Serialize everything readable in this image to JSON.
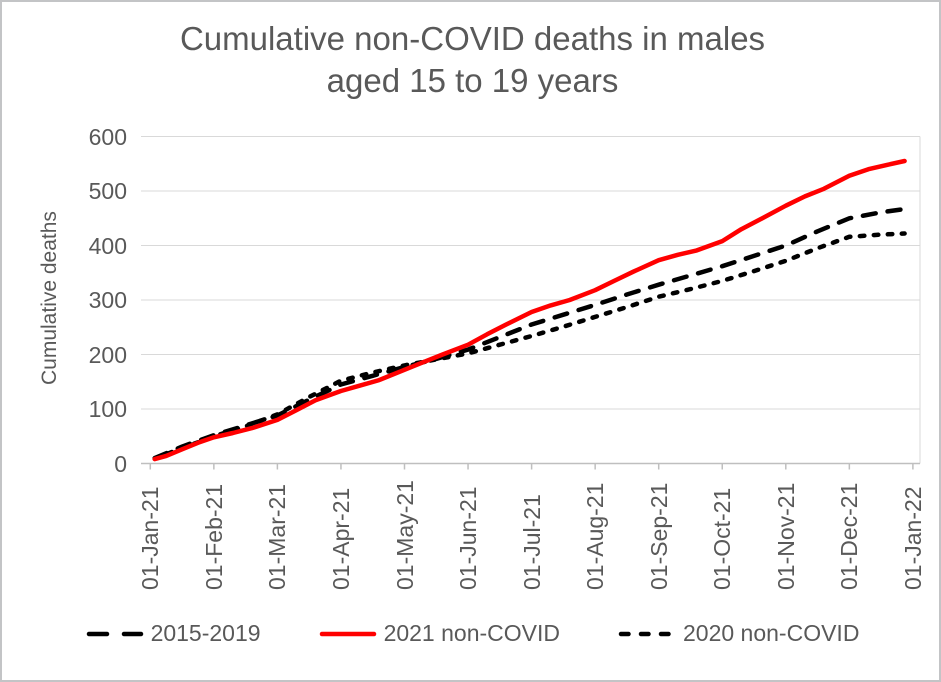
{
  "colors": {
    "text": "#595959",
    "gridline": "#d9d9d9",
    "axis": "#bfbfbf",
    "border": "#c3c4c6",
    "background": "#ffffff",
    "red": "#ff0000",
    "black": "#000000"
  },
  "title": {
    "lines": [
      "Cumulative non-COVID deaths in males",
      "aged 15 to 19 years"
    ]
  },
  "y_axis": {
    "title": "Cumulative deaths",
    "ticks": [
      0,
      100,
      200,
      300,
      400,
      500,
      600
    ],
    "max": 600
  },
  "x_axis": {
    "ticks": [
      "01-Jan-21",
      "01-Feb-21",
      "01-Mar-21",
      "01-Apr-21",
      "01-May-21",
      "01-Jun-21",
      "01-Jul-21",
      "01-Aug-21",
      "01-Sep-21",
      "01-Oct-21",
      "01-Nov-21",
      "01-Dec-21",
      "01-Jan-22"
    ]
  },
  "legend": {
    "items": [
      {
        "label": "2015-2019",
        "color": "#000000",
        "dash": "long"
      },
      {
        "label": "2021 non-COVID",
        "color": "#ff0000",
        "dash": "solid"
      },
      {
        "label": "2020 non-COVID",
        "color": "#000000",
        "dash": "short"
      }
    ]
  },
  "chart_data": {
    "type": "line",
    "title": "Cumulative non-COVID deaths in males aged 15 to 19 years",
    "xlabel": "",
    "ylabel": "Cumulative deaths",
    "ylim": [
      0,
      600
    ],
    "x_unit": "months since 01-Jan-21 (0 = 01-Jan-21, 12 = 01-Jan-22)",
    "grid": "horizontal-major",
    "legend_position": "bottom",
    "series": [
      {
        "name": "2015-2019",
        "color": "#000000",
        "dash": "long",
        "points": [
          [
            0.07,
            10
          ],
          [
            0.5,
            31
          ],
          [
            1.0,
            52
          ],
          [
            1.5,
            70
          ],
          [
            2.0,
            88
          ],
          [
            2.5,
            117
          ],
          [
            3.0,
            145
          ],
          [
            3.5,
            161
          ],
          [
            4.0,
            177
          ],
          [
            4.5,
            192
          ],
          [
            5.0,
            209
          ],
          [
            5.5,
            232
          ],
          [
            6.0,
            255
          ],
          [
            6.5,
            273
          ],
          [
            7.0,
            291
          ],
          [
            7.5,
            310
          ],
          [
            8.0,
            328
          ],
          [
            8.5,
            345
          ],
          [
            9.0,
            362
          ],
          [
            9.5,
            381
          ],
          [
            10.0,
            400
          ],
          [
            10.5,
            426
          ],
          [
            11.0,
            450
          ],
          [
            11.5,
            461
          ],
          [
            11.87,
            467
          ]
        ]
      },
      {
        "name": "2020 non-COVID",
        "color": "#000000",
        "dash": "short",
        "points": [
          [
            0.07,
            9
          ],
          [
            0.5,
            28
          ],
          [
            1.0,
            50
          ],
          [
            1.5,
            68
          ],
          [
            2.0,
            90
          ],
          [
            2.5,
            122
          ],
          [
            3.0,
            152
          ],
          [
            3.5,
            167
          ],
          [
            4.0,
            180
          ],
          [
            4.5,
            191
          ],
          [
            5.0,
            202
          ],
          [
            5.5,
            218
          ],
          [
            6.0,
            234
          ],
          [
            6.5,
            251
          ],
          [
            7.0,
            269
          ],
          [
            7.5,
            287
          ],
          [
            8.0,
            306
          ],
          [
            8.5,
            320
          ],
          [
            9.0,
            335
          ],
          [
            9.5,
            353
          ],
          [
            10.0,
            372
          ],
          [
            10.5,
            395
          ],
          [
            11.0,
            416
          ],
          [
            11.5,
            420
          ],
          [
            11.87,
            422
          ]
        ]
      },
      {
        "name": "2021 non-COVID",
        "color": "#ff0000",
        "dash": "solid",
        "points": [
          [
            0.07,
            8
          ],
          [
            0.25,
            14
          ],
          [
            0.5,
            26
          ],
          [
            0.75,
            38
          ],
          [
            1.0,
            48
          ],
          [
            1.3,
            56
          ],
          [
            1.6,
            65
          ],
          [
            2.0,
            80
          ],
          [
            2.3,
            98
          ],
          [
            2.6,
            116
          ],
          [
            3.0,
            133
          ],
          [
            3.3,
            143
          ],
          [
            3.6,
            153
          ],
          [
            4.0,
            172
          ],
          [
            4.3,
            186
          ],
          [
            4.6,
            200
          ],
          [
            5.0,
            218
          ],
          [
            5.3,
            237
          ],
          [
            5.6,
            255
          ],
          [
            6.0,
            278
          ],
          [
            6.3,
            290
          ],
          [
            6.6,
            300
          ],
          [
            7.0,
            318
          ],
          [
            7.3,
            335
          ],
          [
            7.6,
            352
          ],
          [
            8.0,
            373
          ],
          [
            8.3,
            383
          ],
          [
            8.6,
            391
          ],
          [
            9.0,
            408
          ],
          [
            9.3,
            430
          ],
          [
            9.6,
            448
          ],
          [
            10.0,
            473
          ],
          [
            10.3,
            490
          ],
          [
            10.6,
            504
          ],
          [
            11.0,
            528
          ],
          [
            11.3,
            540
          ],
          [
            11.6,
            548
          ],
          [
            11.87,
            555
          ]
        ]
      }
    ]
  }
}
